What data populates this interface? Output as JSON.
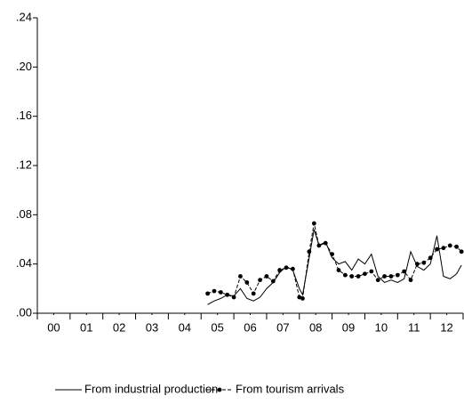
{
  "chart_data": {
    "type": "line",
    "x": [
      2005.2,
      2005.4,
      2005.6,
      2005.8,
      2006.0,
      2006.2,
      2006.4,
      2006.6,
      2006.8,
      2007.0,
      2007.2,
      2007.4,
      2007.6,
      2007.8,
      2008.0,
      2008.1,
      2008.3,
      2008.45,
      2008.6,
      2008.8,
      2009.0,
      2009.2,
      2009.4,
      2009.6,
      2009.8,
      2010.0,
      2010.2,
      2010.4,
      2010.6,
      2010.8,
      2011.0,
      2011.2,
      2011.4,
      2011.6,
      2011.8,
      2012.0,
      2012.2,
      2012.4,
      2012.6,
      2012.8,
      2012.95
    ],
    "series": [
      {
        "name": "From industrial production",
        "color": "#000000",
        "style": "solid",
        "values": [
          0.007,
          0.01,
          0.012,
          0.015,
          0.014,
          0.02,
          0.012,
          0.01,
          0.013,
          0.02,
          0.025,
          0.033,
          0.038,
          0.035,
          0.02,
          0.015,
          0.045,
          0.068,
          0.055,
          0.058,
          0.045,
          0.04,
          0.042,
          0.035,
          0.044,
          0.04,
          0.048,
          0.03,
          0.025,
          0.027,
          0.025,
          0.028,
          0.05,
          0.038,
          0.035,
          0.04,
          0.063,
          0.03,
          0.028,
          0.032,
          0.039
        ]
      },
      {
        "name": "From tourism arrivals",
        "color": "#000000",
        "style": "dashed-markers",
        "values": [
          0.016,
          0.018,
          0.017,
          0.015,
          0.013,
          0.03,
          0.025,
          0.016,
          0.027,
          0.03,
          0.026,
          0.035,
          0.037,
          0.036,
          0.013,
          0.012,
          0.05,
          0.073,
          0.055,
          0.057,
          0.048,
          0.035,
          0.031,
          0.03,
          0.03,
          0.032,
          0.034,
          0.027,
          0.03,
          0.03,
          0.031,
          0.034,
          0.027,
          0.04,
          0.041,
          0.045,
          0.052,
          0.053,
          0.055,
          0.054,
          0.05
        ]
      }
    ],
    "xlim": [
      2000,
      2013
    ],
    "xticks": [
      {
        "value": 2000.5,
        "label": "00"
      },
      {
        "value": 2001.5,
        "label": "01"
      },
      {
        "value": 2002.5,
        "label": "02"
      },
      {
        "value": 2003.5,
        "label": "03"
      },
      {
        "value": 2004.5,
        "label": "04"
      },
      {
        "value": 2005.5,
        "label": "05"
      },
      {
        "value": 2006.5,
        "label": "06"
      },
      {
        "value": 2007.5,
        "label": "07"
      },
      {
        "value": 2008.5,
        "label": "08"
      },
      {
        "value": 2009.5,
        "label": "09"
      },
      {
        "value": 2010.5,
        "label": "10"
      },
      {
        "value": 2011.5,
        "label": "11"
      },
      {
        "value": 2012.5,
        "label": "12"
      }
    ],
    "ylim": [
      0,
      0.24
    ],
    "yticks": [
      {
        "value": 0,
        "label": ".00"
      },
      {
        "value": 0.04,
        "label": ".04"
      },
      {
        "value": 0.08,
        "label": ".08"
      },
      {
        "value": 0.12,
        "label": ".12"
      },
      {
        "value": 0.16,
        "label": ".16"
      },
      {
        "value": 0.2,
        "label": ".20"
      },
      {
        "value": 0.24,
        "label": ".24"
      }
    ],
    "grid": false,
    "legend": "bottom"
  }
}
